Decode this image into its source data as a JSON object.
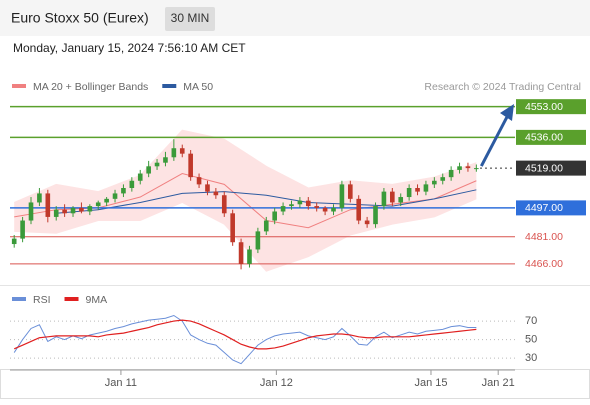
{
  "header": {
    "title": "Euro Stoxx 50 (Eurex)",
    "interval": "30 MIN",
    "timestamp": "Monday, January 15, 2024 7:56:10 AM CET"
  },
  "chart_data": [
    {
      "type": "candlestick",
      "credit": "Research © 2024 Trading Central",
      "open": [
        4477,
        4480,
        4490,
        4500,
        4505,
        4492,
        4496,
        4494,
        4497,
        4495,
        4498,
        4500,
        4502,
        4505,
        4508,
        4512,
        4516,
        4520,
        4522,
        4525,
        4530,
        4527,
        4514,
        4510,
        4506,
        4504,
        4494,
        4478,
        4466,
        4474,
        4484,
        4490,
        4495,
        4498,
        4499,
        4501,
        4498,
        4497,
        4495,
        4497,
        4510,
        4502,
        4490,
        4488,
        4498,
        4506,
        4500,
        4503,
        4508,
        4506,
        4510,
        4512,
        4514,
        4518,
        4520,
        4519
      ],
      "high": [
        4482,
        4492,
        4503,
        4508,
        4507,
        4498,
        4499,
        4498,
        4500,
        4499,
        4501,
        4503,
        4507,
        4510,
        4514,
        4518,
        4523,
        4524,
        4528,
        4535,
        4532,
        4529,
        4516,
        4512,
        4508,
        4506,
        4496,
        4480,
        4476,
        4486,
        4492,
        4497,
        4500,
        4501,
        4503,
        4503,
        4500,
        4498,
        4499,
        4512,
        4512,
        4504,
        4492,
        4500,
        4508,
        4508,
        4505,
        4510,
        4510,
        4512,
        4514,
        4516,
        4520,
        4522,
        4522,
        4521
      ],
      "low": [
        4475,
        4478,
        4488,
        4498,
        4489,
        4490,
        4492,
        4492,
        4494,
        4493,
        4496,
        4498,
        4500,
        4503,
        4506,
        4510,
        4514,
        4518,
        4520,
        4523,
        4525,
        4512,
        4508,
        4504,
        4502,
        4492,
        4476,
        4463,
        4464,
        4472,
        4482,
        4488,
        4493,
        4496,
        4497,
        4496,
        4495,
        4493,
        4493,
        4495,
        4500,
        4488,
        4486,
        4486,
        4496,
        4498,
        4498,
        4501,
        4504,
        4504,
        4508,
        4510,
        4512,
        4516,
        4517,
        4517
      ],
      "close": [
        4480,
        4490,
        4500,
        4505,
        4492,
        4496,
        4494,
        4497,
        4495,
        4498,
        4500,
        4502,
        4505,
        4508,
        4512,
        4516,
        4520,
        4522,
        4525,
        4530,
        4527,
        4514,
        4510,
        4506,
        4504,
        4494,
        4478,
        4466,
        4474,
        4484,
        4490,
        4495,
        4498,
        4499,
        4501,
        4498,
        4497,
        4495,
        4497,
        4510,
        4502,
        4490,
        4488,
        4498,
        4506,
        4500,
        4503,
        4508,
        4506,
        4510,
        4512,
        4514,
        4518,
        4520,
        4519,
        4519
      ],
      "series": [
        {
          "name": "MA 20 + Bollinger Bands",
          "color": "#f08080",
          "band_color": "#fde3e3",
          "x": [
            0,
            5,
            10,
            15,
            20,
            25,
            30,
            35,
            40,
            45,
            50,
            55
          ],
          "values": [
            4492,
            4496,
            4497,
            4503,
            4516,
            4510,
            4490,
            4486,
            4496,
            4499,
            4502,
            4512
          ],
          "upper": [
            4500,
            4510,
            4506,
            4515,
            4540,
            4535,
            4520,
            4508,
            4512,
            4510,
            4514,
            4522
          ],
          "lower": [
            4484,
            4483,
            4490,
            4490,
            4500,
            4488,
            4462,
            4470,
            4482,
            4488,
            4492,
            4502
          ]
        },
        {
          "name": "MA 50",
          "color": "#2c5aa0",
          "x": [
            0,
            5,
            10,
            15,
            20,
            25,
            30,
            35,
            40,
            45,
            50,
            55
          ],
          "values": [
            null,
            4494,
            4496,
            4500,
            4505,
            4506,
            4504,
            4500,
            4499,
            4498,
            4502,
            4507
          ]
        }
      ],
      "levels": [
        {
          "value": 4553,
          "label": "4553.00",
          "color": "#5aa02c",
          "line": "solid",
          "boxed": true
        },
        {
          "value": 4536,
          "label": "4536.00",
          "color": "#5aa02c",
          "line": "solid",
          "boxed": true
        },
        {
          "value": 4519,
          "label": "4519.00",
          "color": "#333333",
          "line": "dotted",
          "boxed": true
        },
        {
          "value": 4497,
          "label": "4497.00",
          "color": "#2f6fdb",
          "line": "solid",
          "boxed": true
        },
        {
          "value": 4481,
          "label": "4481.00",
          "color": "#d9534f",
          "line": "solid",
          "boxed": false
        },
        {
          "value": 4466,
          "label": "4466.00",
          "color": "#d9534f",
          "line": "solid",
          "boxed": false
        }
      ],
      "up_color": "#3a9a3a",
      "down_color": "#c0392b",
      "ylim": [
        4456,
        4560
      ],
      "xlim": [
        -0.5,
        59.6
      ],
      "xticks": [
        {
          "value": 12.7,
          "label": "Jan 11"
        },
        {
          "value": 31.2,
          "label": "Jan 12"
        },
        {
          "value": 49.6,
          "label": "Jan 15"
        },
        {
          "value": 57.6,
          "label": "Jan 21"
        }
      ]
    },
    {
      "type": "line",
      "series": [
        {
          "name": "RSI",
          "color": "#6a8fd8",
          "values": [
            36,
            50,
            62,
            66,
            48,
            53,
            50,
            54,
            51,
            55,
            57,
            59,
            62,
            64,
            67,
            69,
            71,
            72,
            73,
            76,
            70,
            55,
            50,
            46,
            44,
            36,
            28,
            24,
            34,
            44,
            50,
            54,
            56,
            57,
            58,
            54,
            52,
            50,
            53,
            62,
            54,
            45,
            44,
            53,
            58,
            52,
            55,
            58,
            56,
            59,
            60,
            61,
            64,
            65,
            63,
            63
          ]
        },
        {
          "name": "9MA",
          "color": "#e02020",
          "values": [
            40,
            44,
            48,
            52,
            53,
            54,
            54,
            54,
            54,
            54,
            53,
            55,
            56,
            57,
            59,
            61,
            63,
            66,
            68,
            70,
            71,
            70,
            67,
            63,
            59,
            55,
            50,
            45,
            42,
            40,
            40,
            41,
            43,
            46,
            49,
            52,
            54,
            55,
            56,
            56,
            55,
            53,
            52,
            52,
            53,
            53,
            53,
            53,
            54,
            55,
            56,
            57,
            58,
            59,
            60,
            61
          ]
        }
      ],
      "ylim": [
        15,
        103
      ],
      "yticks": [
        30,
        50,
        70
      ],
      "xlim": [
        -0.5,
        59.6
      ]
    }
  ]
}
